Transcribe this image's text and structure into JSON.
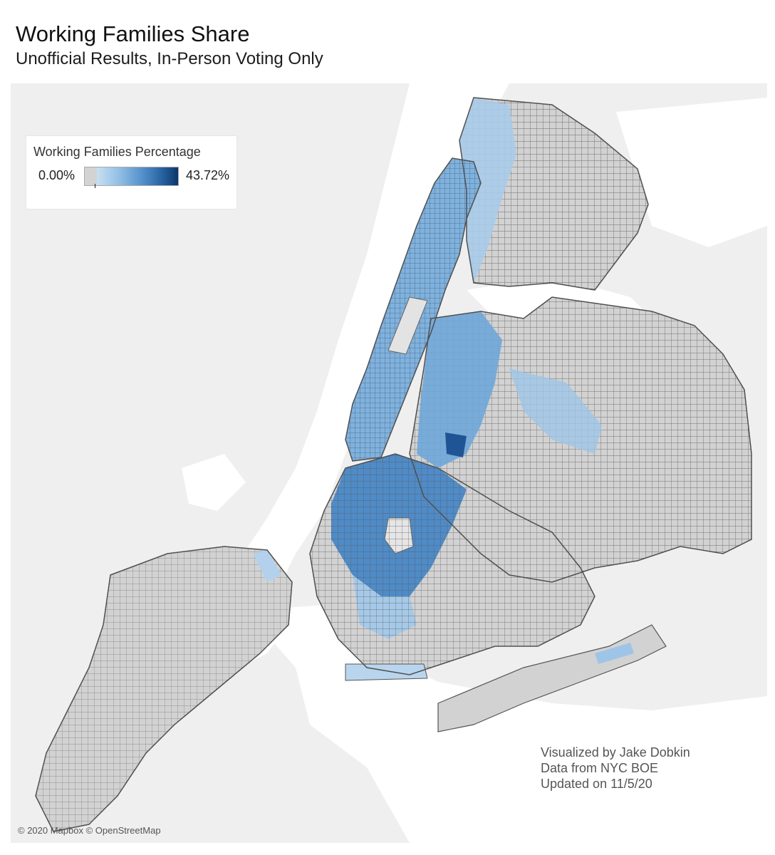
{
  "title": "Working Families Share",
  "subtitle": "Unofficial Results, In-Person Voting Only",
  "legend": {
    "title": "Working Families Percentage",
    "min_label": "0.00%",
    "max_label": "43.72%",
    "min_value": 0.0,
    "max_value": 43.72,
    "colors": [
      "#d3d3d3",
      "#c5def2",
      "#8fbde3",
      "#4e8cc8",
      "#25609e",
      "#0d3768"
    ]
  },
  "credits": [
    "Visualized by Jake Dobkin",
    "Data from NYC BOE",
    "Updated on 11/5/20"
  ],
  "attribution": "© 2020 Mapbox © OpenStreetMap",
  "map_colors": {
    "background": "#efefef",
    "water": "#ffffff",
    "land_neutral": "#d2d2d2",
    "border": "#555555",
    "wf_light": "#c3dcf0",
    "wf_mid": "#8ebce2",
    "wf_strong": "#4f8bc7",
    "wf_dark": "#1f5594"
  }
}
